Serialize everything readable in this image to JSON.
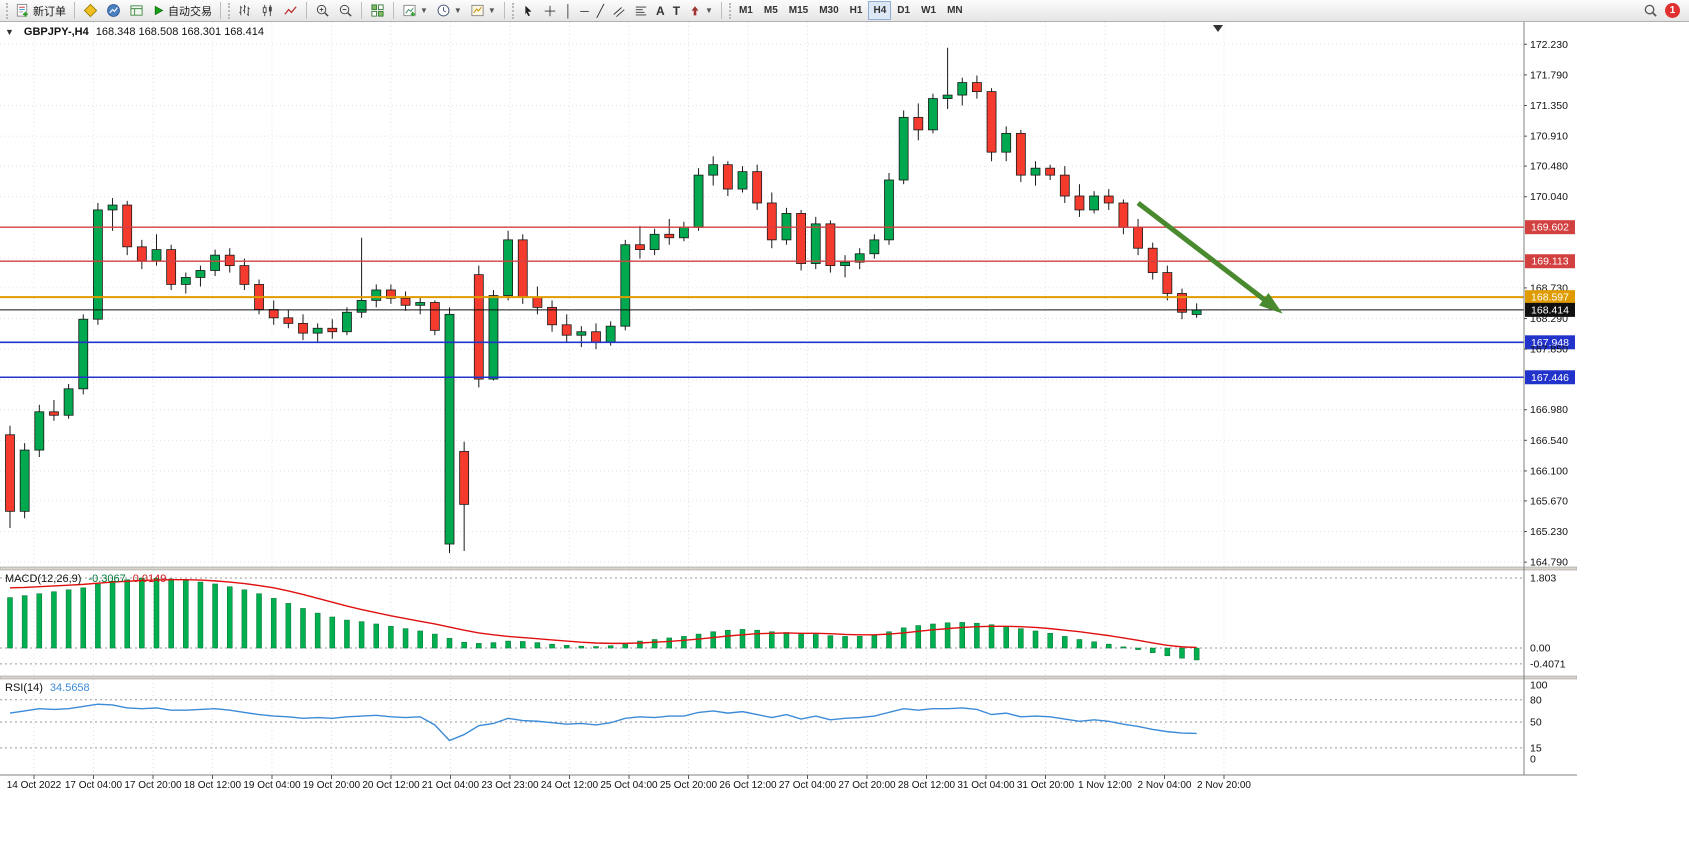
{
  "colors": {
    "bull": "#00a94f",
    "bear": "#f43b2e",
    "candle_outline": "#1a1a1a",
    "macd_hist": "#00b050",
    "macd_signal": "#e01010",
    "rsi_line": "#3c8bd9",
    "hline_red": "#d24040",
    "hline_blue": "#2233cc",
    "hline_orange": "#e09b00",
    "price_line_black": "#101010",
    "arrow_green": "#4a8a2f",
    "grid": "#e2e2e2",
    "level_dash": "#9a9a9a"
  },
  "toolbar": {
    "new_order_label": "新订单",
    "autotrading_label": "自动交易",
    "timeframes": [
      "M1",
      "M5",
      "M15",
      "M30",
      "H1",
      "H4",
      "D1",
      "W1",
      "MN"
    ],
    "active_timeframe": "H4",
    "notification_count": "1",
    "icon_names": [
      "new-order-icon",
      "metaeditor-icon",
      "profiles-icon",
      "terminal-icon",
      "autotrading-play-icon",
      "bar-chart-icon",
      "candlestick-chart-icon",
      "line-chart-icon",
      "zoom-in-icon",
      "zoom-out-icon",
      "tile-windows-icon",
      "indicators-icon",
      "periods-clock-icon",
      "templates-icon",
      "cursor-icon",
      "crosshair-icon",
      "vertical-line-icon",
      "horizontal-line-icon",
      "trendline-icon",
      "channel-icon",
      "fibonacci-icon",
      "text-icon",
      "text-label-icon",
      "arrows-icon",
      "search-icon",
      "notification-badge"
    ]
  },
  "chart_data": {
    "type": "candlestick",
    "symbol_period": "GBPJPY-,H4",
    "ohlc_text": "168.348 168.508 168.301 168.414",
    "y_axis": {
      "min": 164.72,
      "max": 172.55,
      "grid_prices": [
        172.23,
        171.79,
        171.35,
        170.91,
        170.48,
        170.04,
        169.6,
        169.16,
        168.73,
        168.29,
        167.85,
        167.41,
        166.98,
        166.54,
        166.1,
        165.67,
        165.23,
        164.79
      ],
      "ticks": [
        {
          "label": "172.230",
          "price": 172.23,
          "type": "plain"
        },
        {
          "label": "171.790",
          "price": 171.79,
          "type": "plain"
        },
        {
          "label": "171.350",
          "price": 171.35,
          "type": "plain"
        },
        {
          "label": "170.910",
          "price": 170.91,
          "type": "plain"
        },
        {
          "label": "170.480",
          "price": 170.48,
          "type": "plain"
        },
        {
          "label": "170.040",
          "price": 170.04,
          "type": "plain"
        },
        {
          "label": "169.602",
          "price": 169.602,
          "type": "badge",
          "color": "#d24040"
        },
        {
          "label": "169.113",
          "price": 169.113,
          "type": "badge",
          "color": "#d24040"
        },
        {
          "label": "168.730",
          "price": 168.73,
          "type": "plain"
        },
        {
          "label": "168.597",
          "price": 168.597,
          "type": "badge",
          "color": "#e09b00"
        },
        {
          "label": "168.414",
          "price": 168.414,
          "type": "badge",
          "color": "#101010"
        },
        {
          "label": "168.290",
          "price": 168.29,
          "type": "plain"
        },
        {
          "label": "167.948",
          "price": 167.948,
          "type": "badge",
          "color": "#2233cc"
        },
        {
          "label": "167.850",
          "price": 167.85,
          "type": "plain"
        },
        {
          "label": "167.446",
          "price": 167.446,
          "type": "badge",
          "color": "#2233cc"
        },
        {
          "label": "166.980",
          "price": 166.98,
          "type": "plain"
        },
        {
          "label": "166.540",
          "price": 166.54,
          "type": "plain"
        },
        {
          "label": "166.100",
          "price": 166.1,
          "type": "plain"
        },
        {
          "label": "165.670",
          "price": 165.67,
          "type": "plain"
        },
        {
          "label": "165.230",
          "price": 165.23,
          "type": "plain"
        },
        {
          "label": "164.790",
          "price": 164.79,
          "type": "plain"
        }
      ]
    },
    "x_axis": {
      "labels": [
        "14 Oct 2022",
        "17 Oct 04:00",
        "17 Oct 20:00",
        "18 Oct 12:00",
        "19 Oct 04:00",
        "19 Oct 20:00",
        "20 Oct 12:00",
        "21 Oct 04:00",
        "23 Oct 23:00",
        "24 Oct 12:00",
        "25 Oct 04:00",
        "25 Oct 20:00",
        "26 Oct 12:00",
        "27 Oct 04:00",
        "27 Oct 20:00",
        "28 Oct 12:00",
        "31 Oct 04:00",
        "31 Oct 20:00",
        "1 Nov 12:00",
        "2 Nov 04:00",
        "2 Nov 20:00"
      ]
    },
    "candles": [
      [
        166.62,
        166.75,
        165.28,
        165.52
      ],
      [
        165.52,
        166.5,
        165.42,
        166.4
      ],
      [
        166.4,
        167.05,
        166.3,
        166.95
      ],
      [
        166.95,
        167.12,
        166.82,
        166.9
      ],
      [
        166.9,
        167.35,
        166.85,
        167.28
      ],
      [
        167.28,
        168.35,
        167.2,
        168.28
      ],
      [
        168.28,
        169.95,
        168.2,
        169.85
      ],
      [
        169.85,
        170.02,
        169.55,
        169.92
      ],
      [
        169.92,
        169.98,
        169.2,
        169.32
      ],
      [
        169.32,
        169.42,
        169.0,
        169.12
      ],
      [
        169.12,
        169.5,
        169.05,
        169.28
      ],
      [
        169.28,
        169.35,
        168.7,
        168.78
      ],
      [
        168.78,
        168.95,
        168.65,
        168.88
      ],
      [
        168.88,
        169.05,
        168.75,
        168.98
      ],
      [
        168.98,
        169.28,
        168.9,
        169.2
      ],
      [
        169.2,
        169.3,
        168.95,
        169.05
      ],
      [
        169.05,
        169.15,
        168.7,
        168.78
      ],
      [
        168.78,
        168.85,
        168.35,
        168.42
      ],
      [
        168.42,
        168.55,
        168.2,
        168.3
      ],
      [
        168.3,
        168.42,
        168.15,
        168.22
      ],
      [
        168.22,
        168.35,
        167.98,
        168.08
      ],
      [
        168.08,
        168.22,
        167.95,
        168.15
      ],
      [
        168.15,
        168.28,
        168.0,
        168.1
      ],
      [
        168.1,
        168.45,
        168.05,
        168.38
      ],
      [
        168.38,
        169.45,
        168.3,
        168.55
      ],
      [
        168.55,
        168.78,
        168.45,
        168.7
      ],
      [
        168.7,
        168.78,
        168.5,
        168.58
      ],
      [
        168.58,
        168.68,
        168.4,
        168.48
      ],
      [
        168.48,
        168.6,
        168.35,
        168.52
      ],
      [
        168.52,
        168.55,
        168.05,
        168.12
      ],
      [
        165.05,
        168.45,
        164.92,
        168.35
      ],
      [
        166.38,
        166.52,
        164.95,
        165.62
      ],
      [
        168.92,
        169.05,
        167.3,
        167.42
      ],
      [
        167.42,
        168.7,
        167.4,
        168.62
      ],
      [
        168.62,
        169.55,
        168.55,
        169.42
      ],
      [
        169.42,
        169.5,
        168.5,
        168.6
      ],
      [
        168.6,
        168.75,
        168.35,
        168.45
      ],
      [
        168.45,
        168.55,
        168.1,
        168.2
      ],
      [
        168.2,
        168.35,
        167.95,
        168.05
      ],
      [
        168.05,
        168.18,
        167.88,
        168.1
      ],
      [
        168.1,
        168.22,
        167.85,
        167.95
      ],
      [
        167.95,
        168.25,
        167.9,
        168.18
      ],
      [
        168.18,
        169.42,
        168.12,
        169.35
      ],
      [
        169.35,
        169.62,
        169.15,
        169.28
      ],
      [
        169.28,
        169.58,
        169.2,
        169.5
      ],
      [
        169.5,
        169.72,
        169.35,
        169.45
      ],
      [
        169.45,
        169.68,
        169.4,
        169.6
      ],
      [
        169.6,
        170.45,
        169.55,
        170.35
      ],
      [
        170.35,
        170.62,
        170.2,
        170.5
      ],
      [
        170.5,
        170.55,
        170.05,
        170.15
      ],
      [
        170.15,
        170.48,
        170.1,
        170.4
      ],
      [
        170.4,
        170.5,
        169.85,
        169.95
      ],
      [
        169.95,
        170.1,
        169.3,
        169.42
      ],
      [
        169.42,
        169.88,
        169.35,
        169.8
      ],
      [
        169.8,
        169.85,
        168.98,
        169.08
      ],
      [
        169.08,
        169.75,
        169.0,
        169.65
      ],
      [
        169.65,
        169.7,
        168.95,
        169.05
      ],
      [
        169.05,
        169.2,
        168.88,
        169.1
      ],
      [
        169.1,
        169.3,
        169.0,
        169.22
      ],
      [
        169.22,
        169.5,
        169.15,
        169.42
      ],
      [
        169.42,
        170.38,
        169.35,
        170.28
      ],
      [
        170.28,
        171.28,
        170.22,
        171.18
      ],
      [
        171.18,
        171.38,
        170.85,
        171.0
      ],
      [
        171.0,
        171.52,
        170.95,
        171.45
      ],
      [
        171.45,
        172.18,
        171.3,
        171.5
      ],
      [
        171.5,
        171.75,
        171.35,
        171.68
      ],
      [
        171.68,
        171.78,
        171.45,
        171.55
      ],
      [
        171.55,
        171.6,
        170.55,
        170.68
      ],
      [
        170.68,
        171.05,
        170.55,
        170.95
      ],
      [
        170.95,
        171.0,
        170.25,
        170.35
      ],
      [
        170.35,
        170.55,
        170.2,
        170.45
      ],
      [
        170.45,
        170.5,
        170.28,
        170.35
      ],
      [
        170.35,
        170.48,
        169.95,
        170.05
      ],
      [
        170.05,
        170.22,
        169.75,
        169.85
      ],
      [
        169.85,
        170.12,
        169.8,
        170.05
      ],
      [
        170.05,
        170.15,
        169.85,
        169.95
      ],
      [
        169.95,
        170.0,
        169.5,
        169.6
      ],
      [
        169.6,
        169.72,
        169.2,
        169.3
      ],
      [
        169.3,
        169.38,
        168.85,
        168.95
      ],
      [
        168.95,
        169.05,
        168.55,
        168.65
      ],
      [
        168.65,
        168.72,
        168.28,
        168.38
      ],
      [
        168.348,
        168.508,
        168.301,
        168.414
      ]
    ],
    "hlines": [
      {
        "label": "169.602",
        "price": 169.602,
        "color": "#d24040",
        "width": 1.4
      },
      {
        "label": "169.113",
        "price": 169.113,
        "color": "#d24040",
        "width": 1.4
      },
      {
        "label": "168.597",
        "price": 168.597,
        "color": "#e09b00",
        "width": 2
      },
      {
        "label": "168.414",
        "price": 168.414,
        "color": "#101010",
        "width": 1
      },
      {
        "label": "167.948",
        "price": 167.948,
        "color": "#2233cc",
        "width": 1.6
      },
      {
        "label": "167.446",
        "price": 167.446,
        "color": "#2233cc",
        "width": 1.6
      }
    ],
    "annotations": {
      "trend_arrow": {
        "from_index": 77,
        "from_price": 169.95,
        "to_index": 86,
        "to_price": 168.5,
        "color": "#4a8a2f"
      }
    },
    "indicators": [
      {
        "name": "MACD",
        "label": "MACD(12,26,9)",
        "value_main": "-0.3067",
        "value_signal": "0.0149",
        "scale": [
          {
            "label": "1.803",
            "value": 1.803
          },
          {
            "label": "0.00",
            "value": 0
          },
          {
            "label": "-0.4071",
            "value": -0.4071
          }
        ],
        "levels": [
          1.803,
          0,
          -0.4071
        ],
        "histogram": [
          1.3,
          1.35,
          1.4,
          1.45,
          1.5,
          1.55,
          1.65,
          1.72,
          1.76,
          1.8,
          1.8,
          1.78,
          1.74,
          1.7,
          1.65,
          1.58,
          1.5,
          1.4,
          1.28,
          1.15,
          1.02,
          0.9,
          0.8,
          0.72,
          0.68,
          0.62,
          0.56,
          0.5,
          0.44,
          0.36,
          0.25,
          0.15,
          0.12,
          0.14,
          0.18,
          0.17,
          0.14,
          0.1,
          0.07,
          0.05,
          0.04,
          0.06,
          0.12,
          0.18,
          0.22,
          0.26,
          0.3,
          0.36,
          0.42,
          0.46,
          0.48,
          0.46,
          0.42,
          0.4,
          0.37,
          0.35,
          0.32,
          0.3,
          0.3,
          0.34,
          0.42,
          0.52,
          0.58,
          0.62,
          0.65,
          0.66,
          0.64,
          0.6,
          0.56,
          0.5,
          0.44,
          0.38,
          0.3,
          0.22,
          0.16,
          0.1,
          0.03,
          -0.04,
          -0.12,
          -0.2,
          -0.26,
          -0.3067
        ],
        "signal": [
          1.55,
          1.56,
          1.58,
          1.6,
          1.62,
          1.64,
          1.67,
          1.7,
          1.72,
          1.74,
          1.75,
          1.76,
          1.76,
          1.75,
          1.73,
          1.7,
          1.66,
          1.61,
          1.55,
          1.47,
          1.38,
          1.28,
          1.18,
          1.08,
          0.99,
          0.91,
          0.83,
          0.76,
          0.69,
          0.62,
          0.54,
          0.46,
          0.39,
          0.34,
          0.3,
          0.27,
          0.24,
          0.21,
          0.18,
          0.15,
          0.13,
          0.12,
          0.12,
          0.13,
          0.15,
          0.17,
          0.2,
          0.23,
          0.27,
          0.31,
          0.34,
          0.37,
          0.38,
          0.39,
          0.38,
          0.38,
          0.37,
          0.35,
          0.34,
          0.34,
          0.36,
          0.39,
          0.43,
          0.47,
          0.5,
          0.53,
          0.55,
          0.56,
          0.56,
          0.55,
          0.53,
          0.5,
          0.46,
          0.42,
          0.37,
          0.32,
          0.26,
          0.2,
          0.13,
          0.07,
          0.03,
          0.0149
        ]
      },
      {
        "name": "RSI",
        "label": "RSI(14)",
        "value": "34.5658",
        "scale": [
          {
            "label": "100",
            "value": 100
          },
          {
            "label": "80",
            "value": 80
          },
          {
            "label": "50",
            "value": 50
          },
          {
            "label": "15",
            "value": 15
          },
          {
            "label": "0",
            "value": 0
          }
        ],
        "levels": [
          80,
          50,
          15
        ],
        "values": [
          62,
          65,
          68,
          67,
          68,
          71,
          74,
          73,
          69,
          68,
          69,
          66,
          66,
          67,
          68,
          66,
          63,
          60,
          58,
          57,
          55,
          56,
          55,
          57,
          58,
          59,
          57,
          56,
          57,
          46,
          25,
          33,
          45,
          48,
          55,
          52,
          51,
          49,
          47,
          48,
          46,
          49,
          55,
          57,
          56,
          58,
          58,
          63,
          65,
          62,
          64,
          60,
          56,
          60,
          54,
          58,
          53,
          55,
          56,
          58,
          63,
          68,
          66,
          68,
          68,
          69,
          67,
          60,
          62,
          57,
          58,
          57,
          54,
          51,
          53,
          51,
          47,
          44,
          40,
          37,
          35,
          34.5658
        ]
      }
    ]
  }
}
